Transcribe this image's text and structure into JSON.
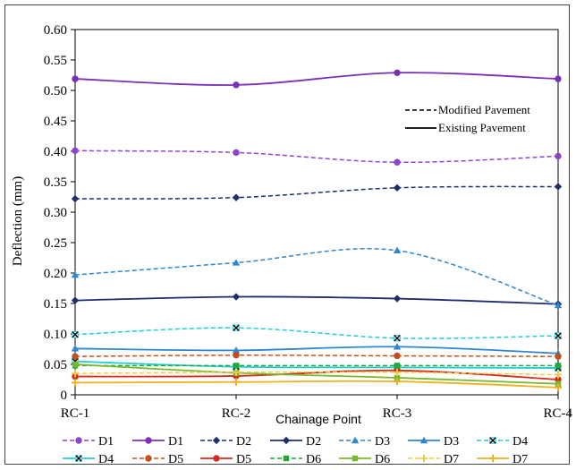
{
  "chart_data": {
    "type": "line",
    "title": "",
    "xlabel": "Chainage Point",
    "ylabel": "Deflection (mm)",
    "categories": [
      "RC-1",
      "RC-2",
      "RC-3",
      "RC-4"
    ],
    "ylim": [
      0,
      0.6
    ],
    "yticks": [
      "0",
      "0.05",
      "0.10",
      "0.15",
      "0.20",
      "0.25",
      "0.30",
      "0.35",
      "0.40",
      "0.45",
      "0.50",
      "0.55",
      "0.60"
    ],
    "grid": false,
    "line_style_legend": {
      "modified": "Modified Pavement",
      "existing": "Existing Pavement"
    },
    "series": [
      {
        "name": "D1",
        "pavement": "modified",
        "dashed": true,
        "color": "#8E44C8",
        "marker": "circle",
        "values": [
          0.401,
          0.398,
          0.382,
          0.392
        ]
      },
      {
        "name": "D1",
        "pavement": "existing",
        "dashed": false,
        "color": "#7A2FB8",
        "marker": "circle",
        "values": [
          0.519,
          0.509,
          0.529,
          0.519
        ]
      },
      {
        "name": "D2",
        "pavement": "modified",
        "dashed": true,
        "color": "#1F2F6E",
        "marker": "diamond",
        "values": [
          0.322,
          0.324,
          0.34,
          0.342
        ]
      },
      {
        "name": "D2",
        "pavement": "existing",
        "dashed": false,
        "color": "#1F2F6E",
        "marker": "diamond",
        "values": [
          0.155,
          0.161,
          0.158,
          0.149
        ]
      },
      {
        "name": "D3",
        "pavement": "modified",
        "dashed": true,
        "color": "#2E86D1",
        "marker": "triangle",
        "values": [
          0.197,
          0.217,
          0.237,
          0.147
        ]
      },
      {
        "name": "D3",
        "pavement": "existing",
        "dashed": false,
        "color": "#2E86D1",
        "marker": "triangle",
        "values": [
          0.076,
          0.073,
          0.079,
          0.068
        ]
      },
      {
        "name": "D4",
        "pavement": "modified",
        "dashed": true,
        "color": "#22CCD6",
        "marker": "x",
        "values": [
          0.099,
          0.11,
          0.093,
          0.097
        ]
      },
      {
        "name": "D4",
        "pavement": "existing",
        "dashed": false,
        "color": "#22CCD6",
        "marker": "x",
        "values": [
          0.055,
          0.046,
          0.045,
          0.044
        ]
      },
      {
        "name": "D5",
        "pavement": "modified",
        "dashed": true,
        "color": "#C0501E",
        "marker": "circle",
        "values": [
          0.063,
          0.065,
          0.064,
          0.063
        ]
      },
      {
        "name": "D5",
        "pavement": "existing",
        "dashed": false,
        "color": "#D42A1E",
        "marker": "circle",
        "values": [
          0.03,
          0.031,
          0.04,
          0.025
        ]
      },
      {
        "name": "D6",
        "pavement": "modified",
        "dashed": true,
        "color": "#1FA83B",
        "marker": "square",
        "values": [
          0.048,
          0.048,
          0.048,
          0.048
        ]
      },
      {
        "name": "D6",
        "pavement": "existing",
        "dashed": false,
        "color": "#78B82E",
        "marker": "square",
        "values": [
          0.05,
          0.036,
          0.028,
          0.018
        ]
      },
      {
        "name": "D7",
        "pavement": "modified",
        "dashed": true,
        "color": "#F2C94C",
        "marker": "plus",
        "values": [
          0.035,
          0.037,
          0.037,
          0.033
        ]
      },
      {
        "name": "D7",
        "pavement": "existing",
        "dashed": false,
        "color": "#F0B020",
        "marker": "plus",
        "values": [
          0.02,
          0.021,
          0.022,
          0.012
        ]
      }
    ]
  }
}
